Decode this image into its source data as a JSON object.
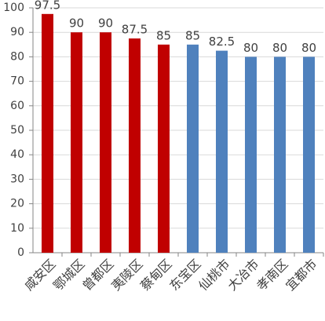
{
  "chart_data": {
    "type": "bar",
    "categories": [
      "咸安区",
      "鄂城区",
      "曾都区",
      "夷陵区",
      "蔡甸区",
      "东宝区",
      "仙桃市",
      "大冶市",
      "孝南区",
      "宜都市"
    ],
    "values": [
      97.5,
      90,
      90,
      87.5,
      85,
      85,
      82.5,
      80,
      80,
      80
    ],
    "colors": [
      "#c00000",
      "#c00000",
      "#c00000",
      "#c00000",
      "#c00000",
      "#4f81bd",
      "#4f81bd",
      "#4f81bd",
      "#4f81bd",
      "#4f81bd"
    ],
    "ylim": [
      0,
      100
    ],
    "yticks": [
      0,
      10,
      20,
      30,
      40,
      50,
      60,
      70,
      80,
      90,
      100
    ],
    "grid": true
  }
}
